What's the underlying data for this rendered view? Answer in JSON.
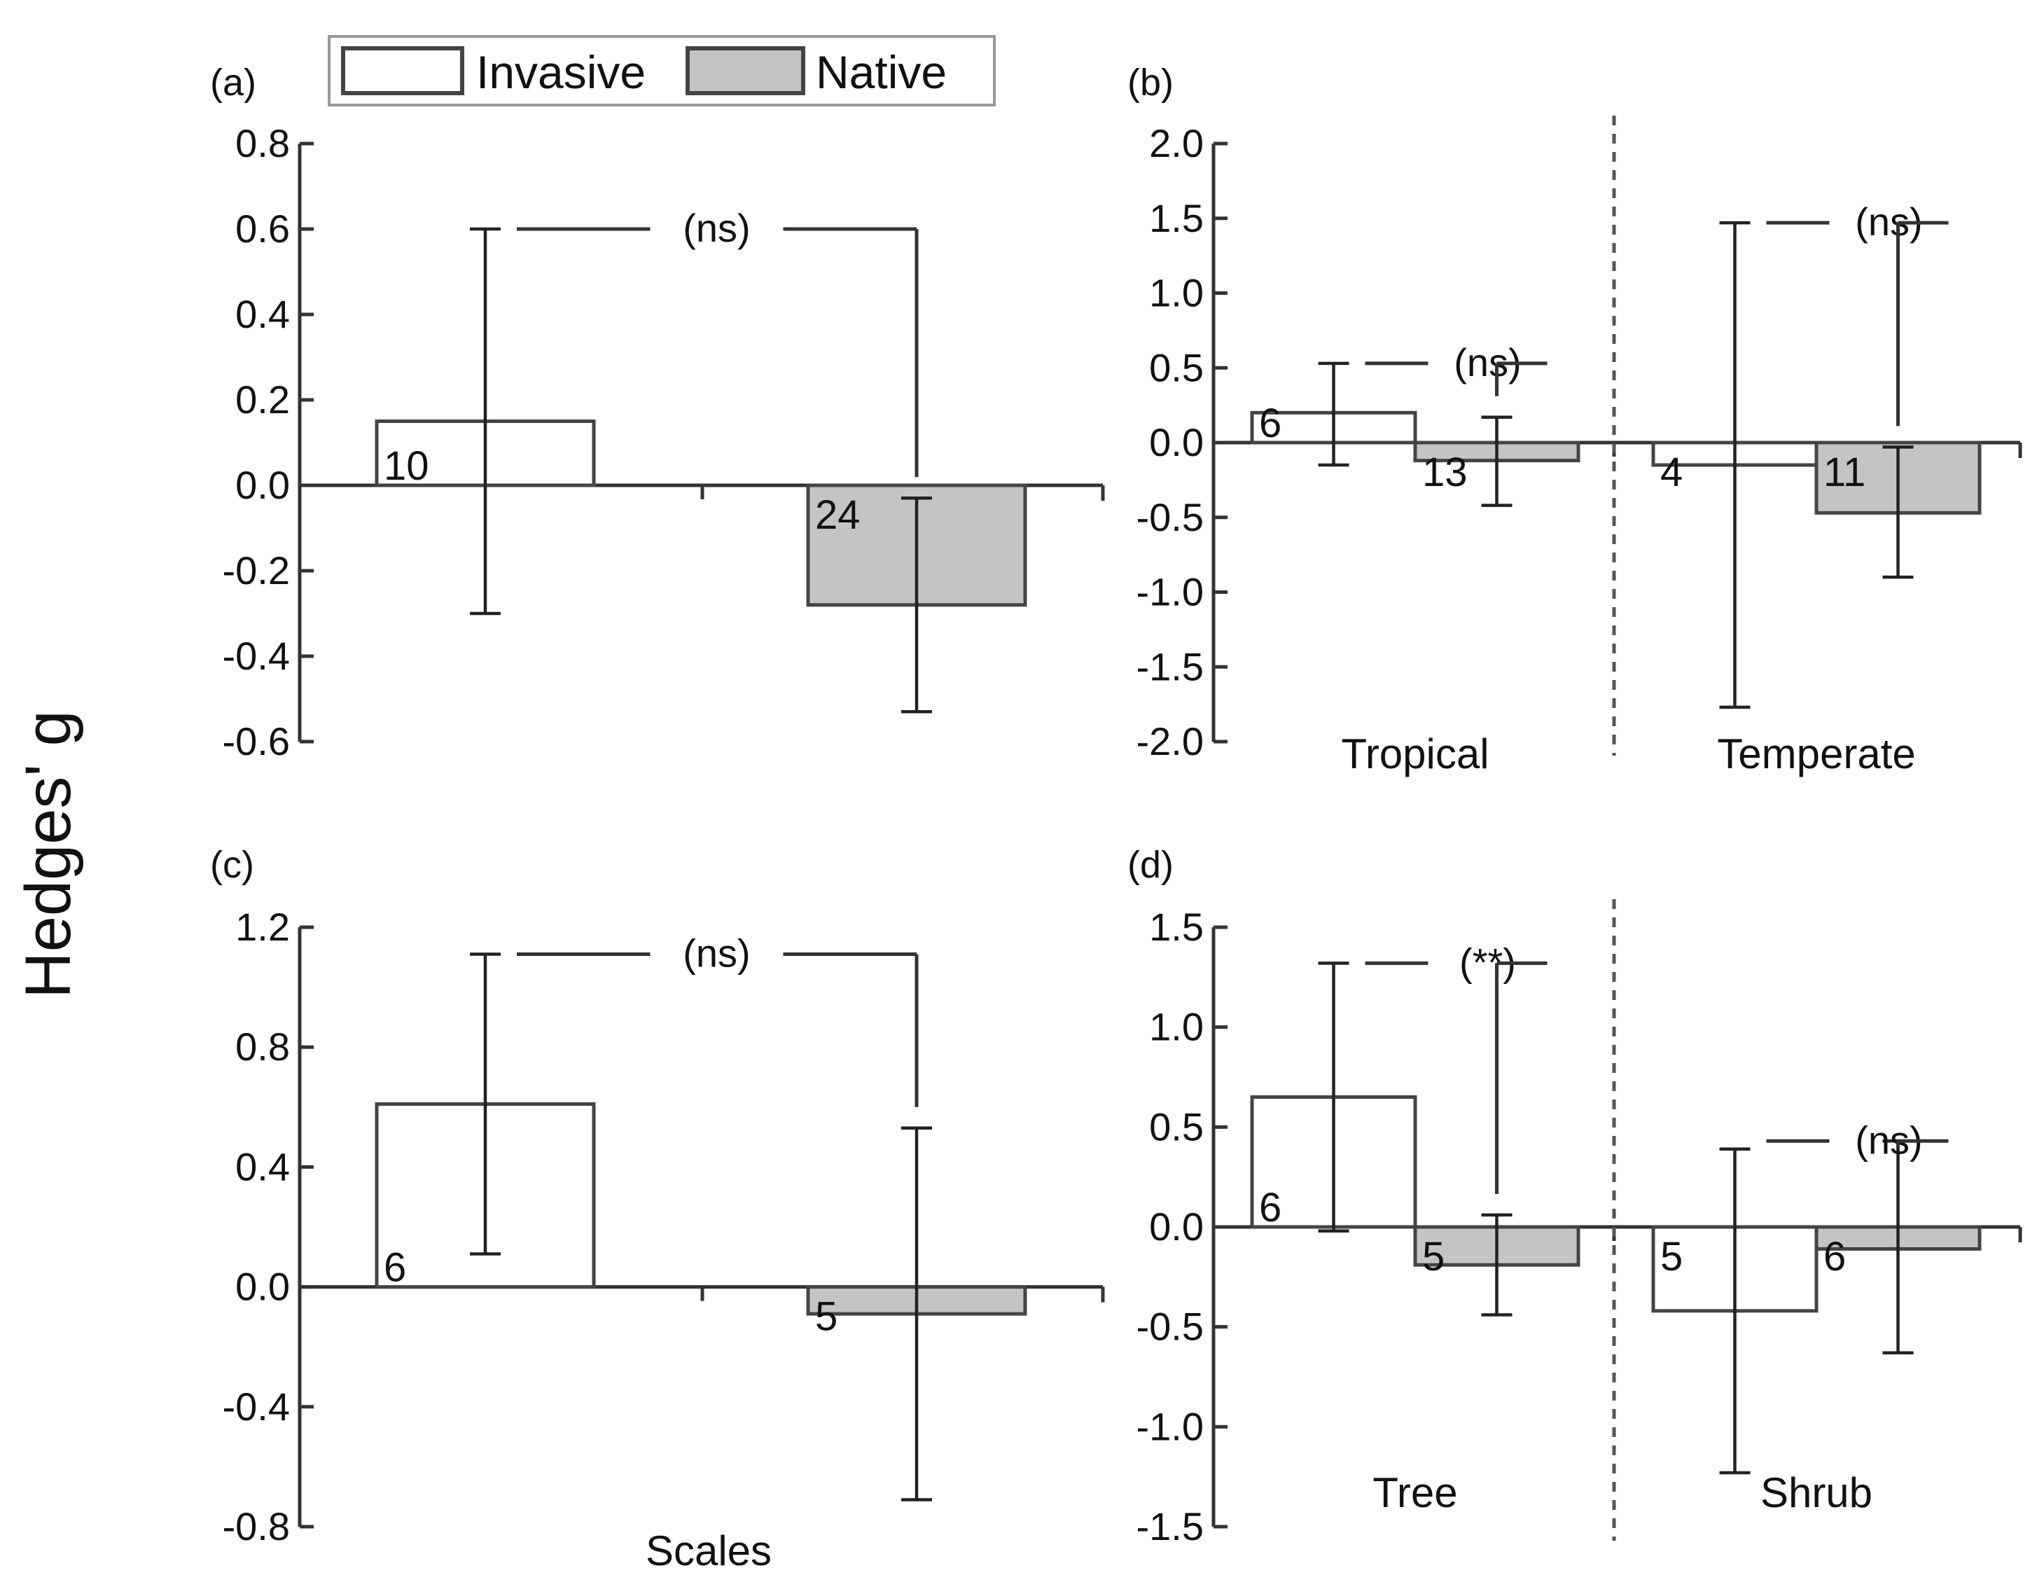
{
  "figure": {
    "y_axis_label": "Hedges' g",
    "legend": {
      "position": "top",
      "entries": [
        {
          "label": "Invasive",
          "fill": "#ffffff"
        },
        {
          "label": "Native",
          "fill": "#c4c4c4"
        }
      ]
    }
  },
  "chart_data": [
    {
      "id": "a",
      "panel_label": "(a)",
      "type": "bar",
      "title": "",
      "xlabel": "",
      "ylabel": "Hedges' g",
      "ylim": [
        -0.6,
        0.8
      ],
      "yticks": [
        0.8,
        0.6,
        0.4,
        0.2,
        0.0,
        -0.2,
        -0.4,
        -0.6
      ],
      "ytick_labels": [
        "0.8",
        "0.6",
        "0.4",
        "0.2",
        "0.0",
        "-0.2",
        "-0.4",
        "-0.6"
      ],
      "categories": [
        ""
      ],
      "series": [
        {
          "name": "Invasive",
          "values": [
            0.15
          ],
          "err_low": [
            -0.3
          ],
          "err_high": [
            0.6
          ],
          "n_labels": [
            "10"
          ]
        },
        {
          "name": "Native",
          "values": [
            -0.28
          ],
          "err_low": [
            -0.53
          ],
          "err_high": [
            -0.03
          ],
          "n_labels": [
            "24"
          ]
        }
      ],
      "annotations": [
        {
          "group": 0,
          "text": "(ns)",
          "level": 0.6
        }
      ]
    },
    {
      "id": "b",
      "panel_label": "(b)",
      "type": "bar",
      "title": "",
      "xlabel": "",
      "ylabel": "Hedges' g",
      "ylim": [
        -2.0,
        2.0
      ],
      "yticks": [
        2.0,
        1.5,
        1.0,
        0.5,
        0.0,
        -0.5,
        -1.0,
        -1.5,
        -2.0
      ],
      "ytick_labels": [
        "2.0",
        "1.5",
        "1.0",
        "0.5",
        "0.0",
        "-0.5",
        "-1.0",
        "-1.5",
        "-2.0"
      ],
      "categories": [
        "Tropical",
        "Temperate"
      ],
      "series": [
        {
          "name": "Invasive",
          "values": [
            0.2,
            -0.15
          ],
          "err_low": [
            -0.15,
            -1.77
          ],
          "err_high": [
            0.53,
            1.47
          ],
          "n_labels": [
            "6",
            "4"
          ]
        },
        {
          "name": "Native",
          "values": [
            -0.12,
            -0.47
          ],
          "err_low": [
            -0.42,
            -0.9
          ],
          "err_high": [
            0.17,
            -0.03
          ],
          "n_labels": [
            "13",
            "11"
          ]
        }
      ],
      "annotations": [
        {
          "group": 0,
          "text": "(ns)",
          "level": 0.53
        },
        {
          "group": 1,
          "text": "(ns)",
          "level": 1.47
        }
      ]
    },
    {
      "id": "c",
      "panel_label": "(c)",
      "type": "bar",
      "title": "",
      "xlabel": "Scales",
      "ylabel": "Hedges' g",
      "ylim": [
        -0.8,
        1.2
      ],
      "yticks": [
        1.2,
        0.8,
        0.4,
        0.0,
        -0.4,
        -0.8
      ],
      "ytick_labels": [
        "1.2",
        "0.8",
        "0.4",
        "0.0",
        "-0.4",
        "-0.8"
      ],
      "categories": [
        ""
      ],
      "series": [
        {
          "name": "Invasive",
          "values": [
            0.61
          ],
          "err_low": [
            0.11
          ],
          "err_high": [
            1.11
          ],
          "n_labels": [
            "6"
          ]
        },
        {
          "name": "Native",
          "values": [
            -0.09
          ],
          "err_low": [
            -0.71
          ],
          "err_high": [
            0.53
          ],
          "n_labels": [
            "5"
          ]
        }
      ],
      "annotations": [
        {
          "group": 0,
          "text": "(ns)",
          "level": 1.11
        }
      ]
    },
    {
      "id": "d",
      "panel_label": "(d)",
      "type": "bar",
      "title": "",
      "xlabel": "",
      "ylabel": "Hedges' g",
      "ylim": [
        -1.5,
        1.5
      ],
      "yticks": [
        1.5,
        1.0,
        0.5,
        0.0,
        -0.5,
        -1.0,
        -1.5
      ],
      "ytick_labels": [
        "1.5",
        "1.0",
        "0.5",
        "0.0",
        "-0.5",
        "-1.0",
        "-1.5"
      ],
      "categories": [
        "Tree",
        "Shrub"
      ],
      "series": [
        {
          "name": "Invasive",
          "values": [
            0.65,
            -0.42
          ],
          "err_low": [
            -0.02,
            -1.23
          ],
          "err_high": [
            1.32,
            0.39
          ],
          "n_labels": [
            "6",
            "5"
          ]
        },
        {
          "name": "Native",
          "values": [
            -0.19,
            -0.11
          ],
          "err_low": [
            -0.44,
            -0.63
          ],
          "err_high": [
            0.06,
            0.43
          ],
          "n_labels": [
            "5",
            "6"
          ]
        }
      ],
      "annotations": [
        {
          "group": 0,
          "text": "(**)",
          "level": 1.32
        },
        {
          "group": 1,
          "text": "(ns)",
          "level": 0.43
        }
      ]
    }
  ]
}
